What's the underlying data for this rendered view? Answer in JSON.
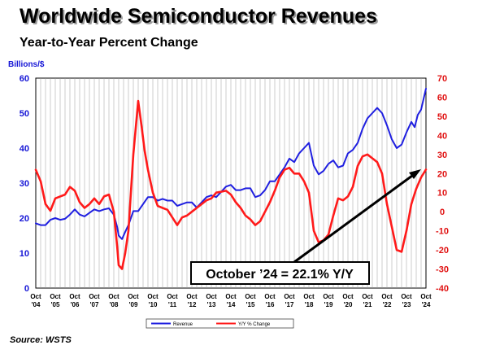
{
  "title": "Worldwide Semiconductor Revenues",
  "subtitle": "Year-to-Year Percent Change",
  "unit_label": "Billions/$",
  "source": "Source: WSTS",
  "callout": "October ’24 = 22.1% Y/Y",
  "colors": {
    "revenue": "#1f1fe0",
    "yoy": "#ff1a1a",
    "left_axis": "#1515d6",
    "right_axis": "#e01010"
  },
  "chart_data": {
    "type": "line",
    "x_tick_labels": [
      [
        "Oct",
        "'04"
      ],
      [
        "Oct",
        "'05"
      ],
      [
        "Oct",
        "'06"
      ],
      [
        "Oct",
        "'07"
      ],
      [
        "Oct",
        "'08"
      ],
      [
        "Oct",
        "'09"
      ],
      [
        "Oct",
        "'10"
      ],
      [
        "Oct",
        "'11"
      ],
      [
        "Oct",
        "'12"
      ],
      [
        "Oct",
        "'13"
      ],
      [
        "Oct",
        "'14"
      ],
      [
        "Oct",
        "'15"
      ],
      [
        "Oct",
        "'16"
      ],
      [
        "Oct",
        "'17"
      ],
      [
        "Oct",
        "'18"
      ],
      [
        "Oct",
        "'19"
      ],
      [
        "Oct",
        "'20"
      ],
      [
        "Oct",
        "'21"
      ],
      [
        "Oct",
        "'22"
      ],
      [
        "Oct",
        "'23"
      ],
      [
        "Oct",
        "'24"
      ]
    ],
    "x_range": [
      2004.75,
      2024.75
    ],
    "y_left": {
      "ticks": [
        "0",
        "10",
        "20",
        "30",
        "40",
        "50",
        "60"
      ],
      "range": [
        0,
        60
      ]
    },
    "y_right": {
      "ticks": [
        "-40",
        "-30",
        "-20",
        "-10",
        "0",
        "10",
        "20",
        "30",
        "40",
        "50",
        "60",
        "70"
      ],
      "range": [
        -40,
        70
      ]
    },
    "grid": "vertical",
    "legend_position": "bottom-center",
    "series": [
      {
        "name": "Revenue",
        "axis": "left",
        "points": [
          [
            2004.75,
            18.5
          ],
          [
            2005.0,
            18.0
          ],
          [
            2005.25,
            18.0
          ],
          [
            2005.5,
            19.5
          ],
          [
            2005.75,
            20.0
          ],
          [
            2006.0,
            19.5
          ],
          [
            2006.25,
            19.8
          ],
          [
            2006.5,
            21.0
          ],
          [
            2006.75,
            22.5
          ],
          [
            2007.0,
            21.0
          ],
          [
            2007.25,
            20.5
          ],
          [
            2007.5,
            21.5
          ],
          [
            2007.75,
            22.5
          ],
          [
            2008.0,
            22.0
          ],
          [
            2008.25,
            22.5
          ],
          [
            2008.5,
            22.8
          ],
          [
            2008.75,
            21.0
          ],
          [
            2008.92,
            17.5
          ],
          [
            2009.0,
            15.0
          ],
          [
            2009.17,
            14.0
          ],
          [
            2009.33,
            16.0
          ],
          [
            2009.5,
            18.0
          ],
          [
            2009.75,
            22.0
          ],
          [
            2010.0,
            22.0
          ],
          [
            2010.25,
            24.0
          ],
          [
            2010.5,
            26.0
          ],
          [
            2010.75,
            26.0
          ],
          [
            2011.0,
            25.0
          ],
          [
            2011.25,
            25.5
          ],
          [
            2011.5,
            25.0
          ],
          [
            2011.75,
            25.0
          ],
          [
            2012.0,
            23.5
          ],
          [
            2012.25,
            24.0
          ],
          [
            2012.5,
            24.5
          ],
          [
            2012.75,
            24.5
          ],
          [
            2013.0,
            23.0
          ],
          [
            2013.25,
            24.5
          ],
          [
            2013.5,
            26.0
          ],
          [
            2013.75,
            26.5
          ],
          [
            2014.0,
            26.0
          ],
          [
            2014.25,
            27.5
          ],
          [
            2014.5,
            29.0
          ],
          [
            2014.75,
            29.5
          ],
          [
            2015.0,
            28.0
          ],
          [
            2015.25,
            28.0
          ],
          [
            2015.5,
            28.5
          ],
          [
            2015.75,
            28.5
          ],
          [
            2016.0,
            26.0
          ],
          [
            2016.25,
            26.5
          ],
          [
            2016.5,
            28.0
          ],
          [
            2016.75,
            30.5
          ],
          [
            2017.0,
            30.5
          ],
          [
            2017.25,
            32.5
          ],
          [
            2017.5,
            34.5
          ],
          [
            2017.75,
            37.0
          ],
          [
            2018.0,
            36.0
          ],
          [
            2018.25,
            38.5
          ],
          [
            2018.5,
            40.0
          ],
          [
            2018.75,
            41.5
          ],
          [
            2019.0,
            35.0
          ],
          [
            2019.25,
            32.5
          ],
          [
            2019.5,
            33.5
          ],
          [
            2019.75,
            35.5
          ],
          [
            2020.0,
            36.5
          ],
          [
            2020.25,
            34.5
          ],
          [
            2020.5,
            35.0
          ],
          [
            2020.75,
            38.5
          ],
          [
            2021.0,
            39.5
          ],
          [
            2021.25,
            41.5
          ],
          [
            2021.5,
            45.5
          ],
          [
            2021.75,
            48.5
          ],
          [
            2022.0,
            50.0
          ],
          [
            2022.25,
            51.5
          ],
          [
            2022.5,
            50.0
          ],
          [
            2022.75,
            46.5
          ],
          [
            2023.0,
            42.5
          ],
          [
            2023.25,
            40.0
          ],
          [
            2023.5,
            41.0
          ],
          [
            2023.75,
            44.5
          ],
          [
            2024.0,
            47.5
          ],
          [
            2024.17,
            46.0
          ],
          [
            2024.33,
            49.5
          ],
          [
            2024.5,
            51.0
          ],
          [
            2024.75,
            57.0
          ]
        ]
      },
      {
        "name": "Y/Y % Change",
        "axis": "right",
        "points": [
          [
            2004.75,
            22.0
          ],
          [
            2005.0,
            16.0
          ],
          [
            2005.25,
            4.0
          ],
          [
            2005.5,
            0.5
          ],
          [
            2005.75,
            7.0
          ],
          [
            2006.0,
            8.0
          ],
          [
            2006.25,
            9.0
          ],
          [
            2006.5,
            13.0
          ],
          [
            2006.75,
            11.0
          ],
          [
            2007.0,
            5.0
          ],
          [
            2007.25,
            2.0
          ],
          [
            2007.5,
            4.0
          ],
          [
            2007.75,
            7.0
          ],
          [
            2008.0,
            4.0
          ],
          [
            2008.25,
            8.0
          ],
          [
            2008.5,
            9.0
          ],
          [
            2008.75,
            0.0
          ],
          [
            2008.92,
            -18.0
          ],
          [
            2009.0,
            -28.0
          ],
          [
            2009.17,
            -30.0
          ],
          [
            2009.33,
            -22.0
          ],
          [
            2009.5,
            -10.0
          ],
          [
            2009.75,
            30.0
          ],
          [
            2010.0,
            58.0
          ],
          [
            2010.17,
            45.0
          ],
          [
            2010.33,
            32.0
          ],
          [
            2010.5,
            22.0
          ],
          [
            2010.75,
            10.0
          ],
          [
            2011.0,
            3.0
          ],
          [
            2011.25,
            2.0
          ],
          [
            2011.5,
            1.0
          ],
          [
            2011.75,
            -3.0
          ],
          [
            2012.0,
            -7.0
          ],
          [
            2012.25,
            -3.0
          ],
          [
            2012.5,
            -2.0
          ],
          [
            2012.75,
            0.0
          ],
          [
            2013.0,
            2.0
          ],
          [
            2013.25,
            4.0
          ],
          [
            2013.5,
            6.0
          ],
          [
            2013.75,
            7.0
          ],
          [
            2014.0,
            10.0
          ],
          [
            2014.25,
            10.5
          ],
          [
            2014.5,
            11.0
          ],
          [
            2014.75,
            9.0
          ],
          [
            2015.0,
            5.0
          ],
          [
            2015.25,
            2.0
          ],
          [
            2015.5,
            -2.0
          ],
          [
            2015.75,
            -4.0
          ],
          [
            2016.0,
            -7.0
          ],
          [
            2016.25,
            -5.0
          ],
          [
            2016.5,
            0.0
          ],
          [
            2016.75,
            5.0
          ],
          [
            2017.0,
            11.0
          ],
          [
            2017.25,
            18.0
          ],
          [
            2017.5,
            22.0
          ],
          [
            2017.75,
            23.0
          ],
          [
            2018.0,
            20.0
          ],
          [
            2018.25,
            20.0
          ],
          [
            2018.5,
            16.0
          ],
          [
            2018.75,
            10.0
          ],
          [
            2019.0,
            -10.0
          ],
          [
            2019.25,
            -16.0
          ],
          [
            2019.5,
            -15.0
          ],
          [
            2019.75,
            -12.0
          ],
          [
            2020.0,
            -2.0
          ],
          [
            2020.25,
            7.0
          ],
          [
            2020.5,
            6.0
          ],
          [
            2020.75,
            8.0
          ],
          [
            2021.0,
            13.0
          ],
          [
            2021.25,
            24.0
          ],
          [
            2021.5,
            29.0
          ],
          [
            2021.75,
            30.0
          ],
          [
            2022.0,
            28.0
          ],
          [
            2022.25,
            26.0
          ],
          [
            2022.5,
            20.0
          ],
          [
            2022.75,
            4.0
          ],
          [
            2023.0,
            -8.0
          ],
          [
            2023.25,
            -20.0
          ],
          [
            2023.5,
            -21.0
          ],
          [
            2023.75,
            -10.0
          ],
          [
            2024.0,
            4.0
          ],
          [
            2024.25,
            12.0
          ],
          [
            2024.5,
            18.0
          ],
          [
            2024.75,
            22.1
          ]
        ]
      }
    ]
  }
}
